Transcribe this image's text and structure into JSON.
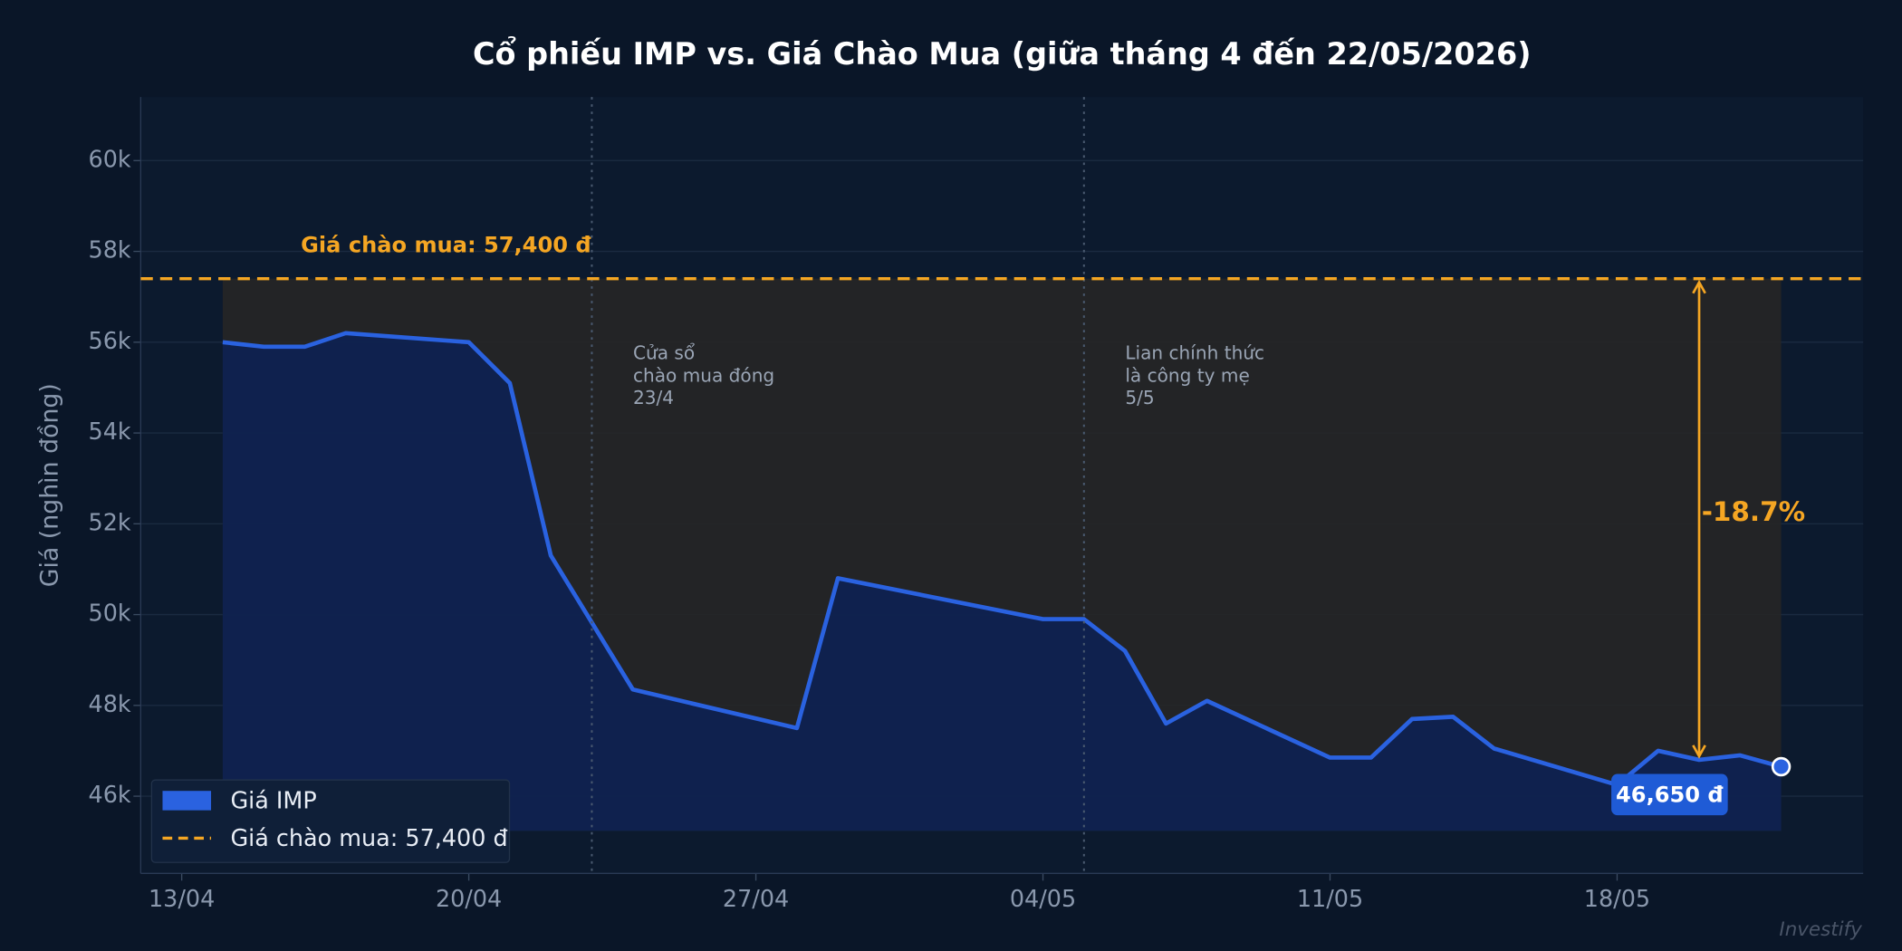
{
  "chart_data": {
    "type": "line",
    "title": "Cổ phiếu IMP vs. Giá Chào Mua (giữa tháng 4 đến 22/05/2026)",
    "y_label": "Giá (nghìn đồng)",
    "x": [
      "14/04",
      "15/04",
      "16/04",
      "17/04",
      "20/04",
      "21/04",
      "22/04",
      "24/04",
      "28/04",
      "29/04",
      "04/05",
      "05/05",
      "06/05",
      "07/05",
      "08/05",
      "11/05",
      "12/05",
      "13/05",
      "14/05",
      "15/05",
      "18/05",
      "19/05",
      "20/05",
      "21/05",
      "22/05"
    ],
    "series": [
      {
        "name": "Giá IMP",
        "color": "#2a62e0",
        "values": [
          56000,
          55900,
          55900,
          56200,
          56000,
          55100,
          51300,
          48350,
          47500,
          50800,
          49900,
          49900,
          49200,
          47600,
          48100,
          46850,
          46850,
          47700,
          47750,
          47050,
          46250,
          47000,
          46800,
          46900,
          46650
        ],
        "value_labels": [
          null,
          null,
          null,
          null,
          null,
          null,
          null,
          null,
          null,
          null,
          null,
          null,
          null,
          null,
          null,
          null,
          null,
          null,
          null,
          null,
          null,
          null,
          null,
          null,
          "46,650 đ"
        ]
      }
    ],
    "reference": {
      "name": "Giá chào mua: 57,400 đ",
      "value": 57400,
      "color": "#f5a623"
    },
    "annotations": [
      {
        "x": "23/04",
        "lines": [
          "Cửa sổ",
          "chào mua đóng",
          "23/4"
        ]
      },
      {
        "x": "05/05",
        "lines": [
          "Lian chính thức",
          "là công ty mẹ",
          "5/5"
        ]
      }
    ],
    "gap": {
      "x": "20/05",
      "label": "-18.7%"
    },
    "xlim": [
      "12/04",
      "24/05"
    ],
    "xticks": [
      "13/04",
      "20/04",
      "27/04",
      "04/05",
      "11/05",
      "18/05"
    ],
    "ylim": [
      44300,
      61400
    ],
    "yticks": [
      {
        "value": 46000,
        "label": "46k"
      },
      {
        "value": 48000,
        "label": "48k"
      },
      {
        "value": 50000,
        "label": "50k"
      },
      {
        "value": 52000,
        "label": "52k"
      },
      {
        "value": 54000,
        "label": "54k"
      },
      {
        "value": 56000,
        "label": "56k"
      },
      {
        "value": 58000,
        "label": "58k"
      },
      {
        "value": 60000,
        "label": "60k"
      }
    ],
    "grid": true,
    "legend": "lower left",
    "watermark": "Investify"
  }
}
